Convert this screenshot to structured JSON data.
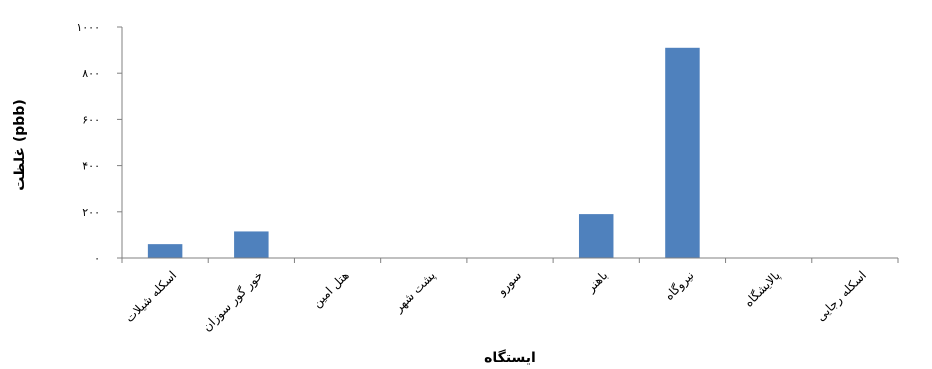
{
  "chart_data": {
    "type": "bar",
    "categories": [
      "اسکله شیلات",
      "خور گور سوزان",
      "هتل امین",
      "پشت شهر",
      "سورو",
      "باهنر",
      "نیروگاه",
      "پالایشگاه",
      "اسکله رجایی"
    ],
    "values": [
      60,
      115,
      0,
      0,
      0,
      190,
      910,
      0,
      0
    ],
    "ylim": [
      0,
      1000
    ],
    "yticks": [
      0,
      200,
      400,
      600,
      800,
      1000
    ],
    "ytick_labels": [
      "۰",
      "۲۰۰",
      "۴۰۰",
      "۶۰۰",
      "۸۰۰",
      "۱۰۰۰"
    ],
    "xlabel": "ایستگاه",
    "ylabel": "غلظت (pbb)",
    "grid": false,
    "legend": "none",
    "bar_color": "#4f81bd",
    "axis_color": "#808080"
  }
}
